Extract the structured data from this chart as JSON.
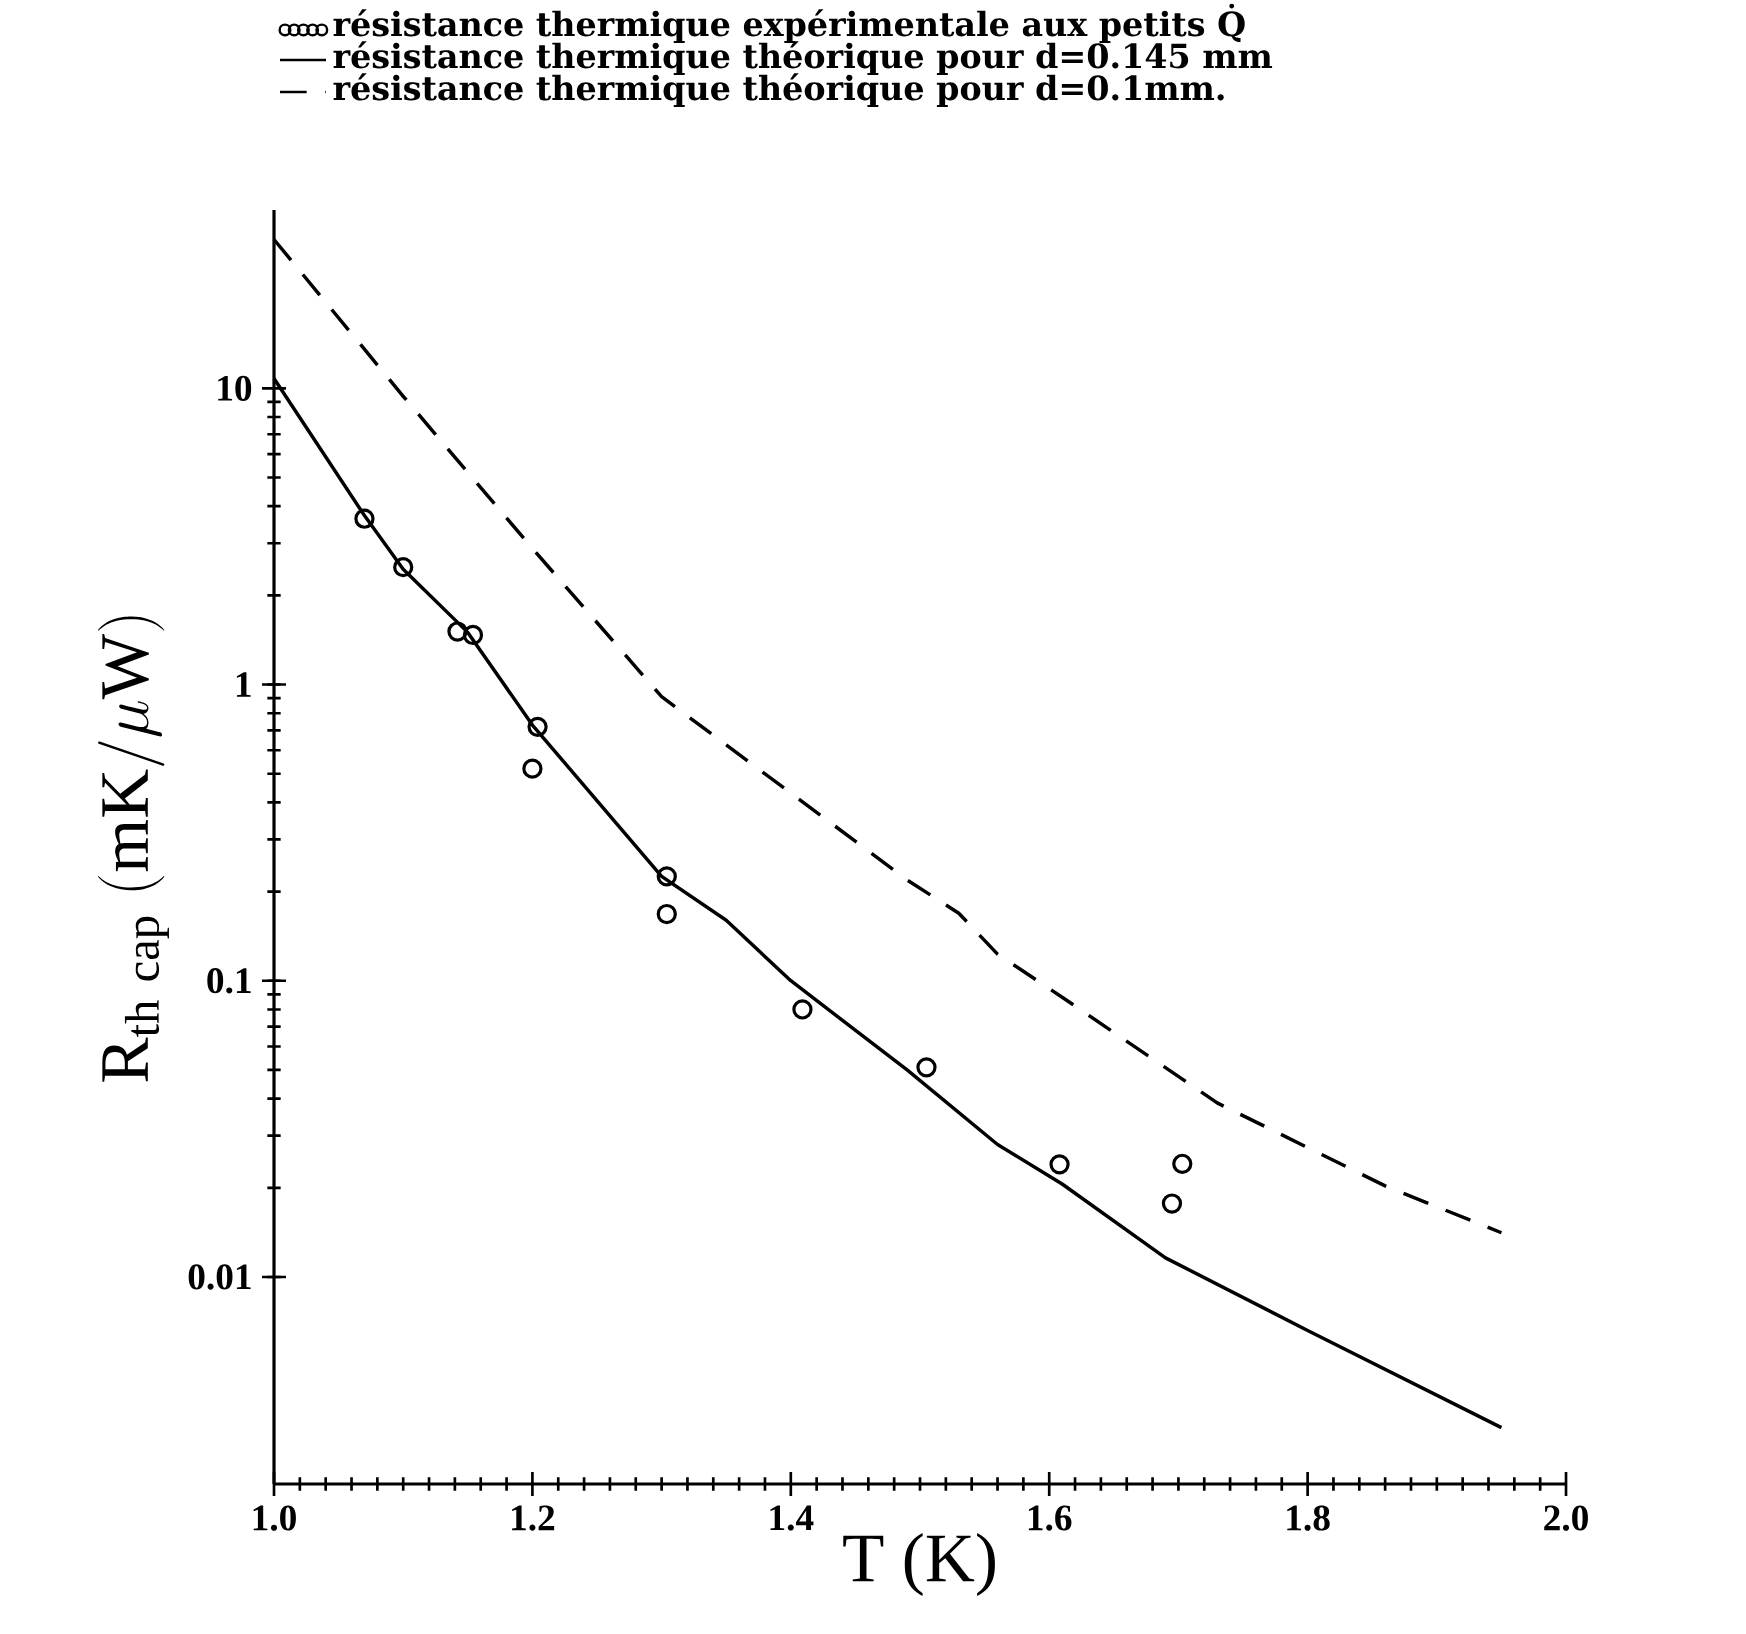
{
  "chart_data": {
    "type": "line",
    "xlabel": "T (K)",
    "ylabel": "\\mathrm{R}_{\\mathrm{th\\ cap}}\\ (\\mathrm{mK}/\\mu\\mathrm{W})",
    "log": "y",
    "xlim": [
      1.0,
      2.0
    ],
    "ylim": [
      0.002,
      40
    ],
    "xticks": [
      {
        "value": 1.0,
        "label": "1.0"
      },
      {
        "value": 1.2,
        "label": "1.2"
      },
      {
        "value": 1.4,
        "label": "1.4"
      },
      {
        "value": 1.6,
        "label": "1.6"
      },
      {
        "value": 1.8,
        "label": "1.8"
      },
      {
        "value": 2.0,
        "label": "2.0"
      }
    ],
    "yticks": [
      0.01,
      0.1,
      1,
      10
    ],
    "legend": "top",
    "grid": false,
    "series": [
      {
        "name": "résistance thermique expérimentale aux petits Q̇",
        "type": "scatter",
        "marker": "circle",
        "color": "#000000",
        "x": [
          1.07,
          1.1,
          1.142,
          1.154,
          1.204,
          1.2,
          1.304,
          1.304,
          1.409,
          1.505,
          1.608,
          1.695,
          1.703
        ],
        "values": [
          3.63,
          2.49,
          1.51,
          1.47,
          0.72,
          0.52,
          0.225,
          0.168,
          0.08,
          0.051,
          0.024,
          0.0177,
          0.0241
        ]
      },
      {
        "name": "résistance thermique théorique pour d=0.145 mm",
        "line_style": "solid",
        "color": "#000000",
        "x": [
          1.0,
          1.07,
          1.1,
          1.15,
          1.2,
          1.3,
          1.35,
          1.4,
          1.49,
          1.56,
          1.61,
          1.69,
          1.8,
          1.95
        ],
        "values": [
          10.8,
          3.72,
          2.45,
          1.5,
          0.73,
          0.225,
          0.16,
          0.1,
          0.05,
          0.028,
          0.0206,
          0.0116,
          0.0066,
          0.0031
        ]
      },
      {
        "name": "résistance thermique théorique pour d=0.1mm.",
        "line_style": "dashed",
        "color": "#000000",
        "x": [
          1.0,
          1.1,
          1.2,
          1.3,
          1.49,
          1.53,
          1.56,
          1.61,
          1.73,
          1.86,
          1.95
        ],
        "values": [
          31.8,
          9.4,
          2.88,
          0.91,
          0.219,
          0.169,
          0.123,
          0.088,
          0.0387,
          0.0203,
          0.0141
        ]
      }
    ]
  }
}
